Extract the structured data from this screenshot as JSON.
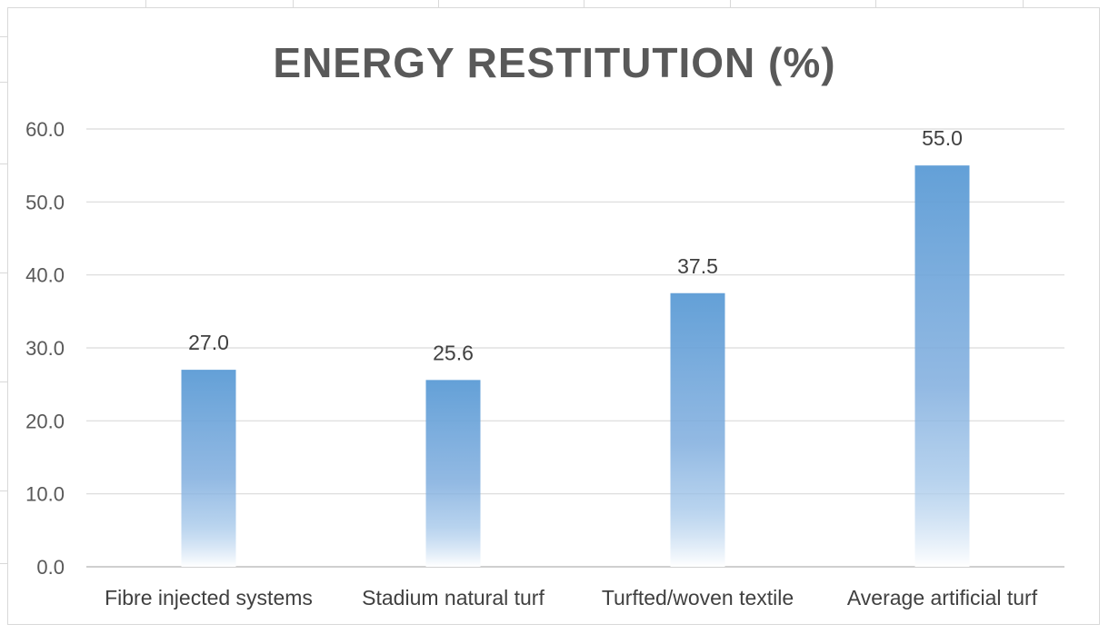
{
  "chart_data": {
    "type": "bar",
    "title": "ENERGY RESTITUTION (%)",
    "categories": [
      "Fibre injected systems",
      "Stadium natural turf",
      "Turfted/woven textile",
      "Average artificial turf"
    ],
    "values": [
      27.0,
      25.6,
      37.5,
      55.0
    ],
    "value_labels": [
      "27.0",
      "25.6",
      "37.5",
      "55.0"
    ],
    "ylim": [
      0,
      60
    ],
    "yticks": [
      "0.0",
      "10.0",
      "20.0",
      "30.0",
      "40.0",
      "50.0",
      "60.0"
    ],
    "xlabel": "",
    "ylabel": "",
    "grid": true,
    "legend": "none",
    "bar_color": "#5b9bd5",
    "bar_fade_color": "#ffffff"
  }
}
